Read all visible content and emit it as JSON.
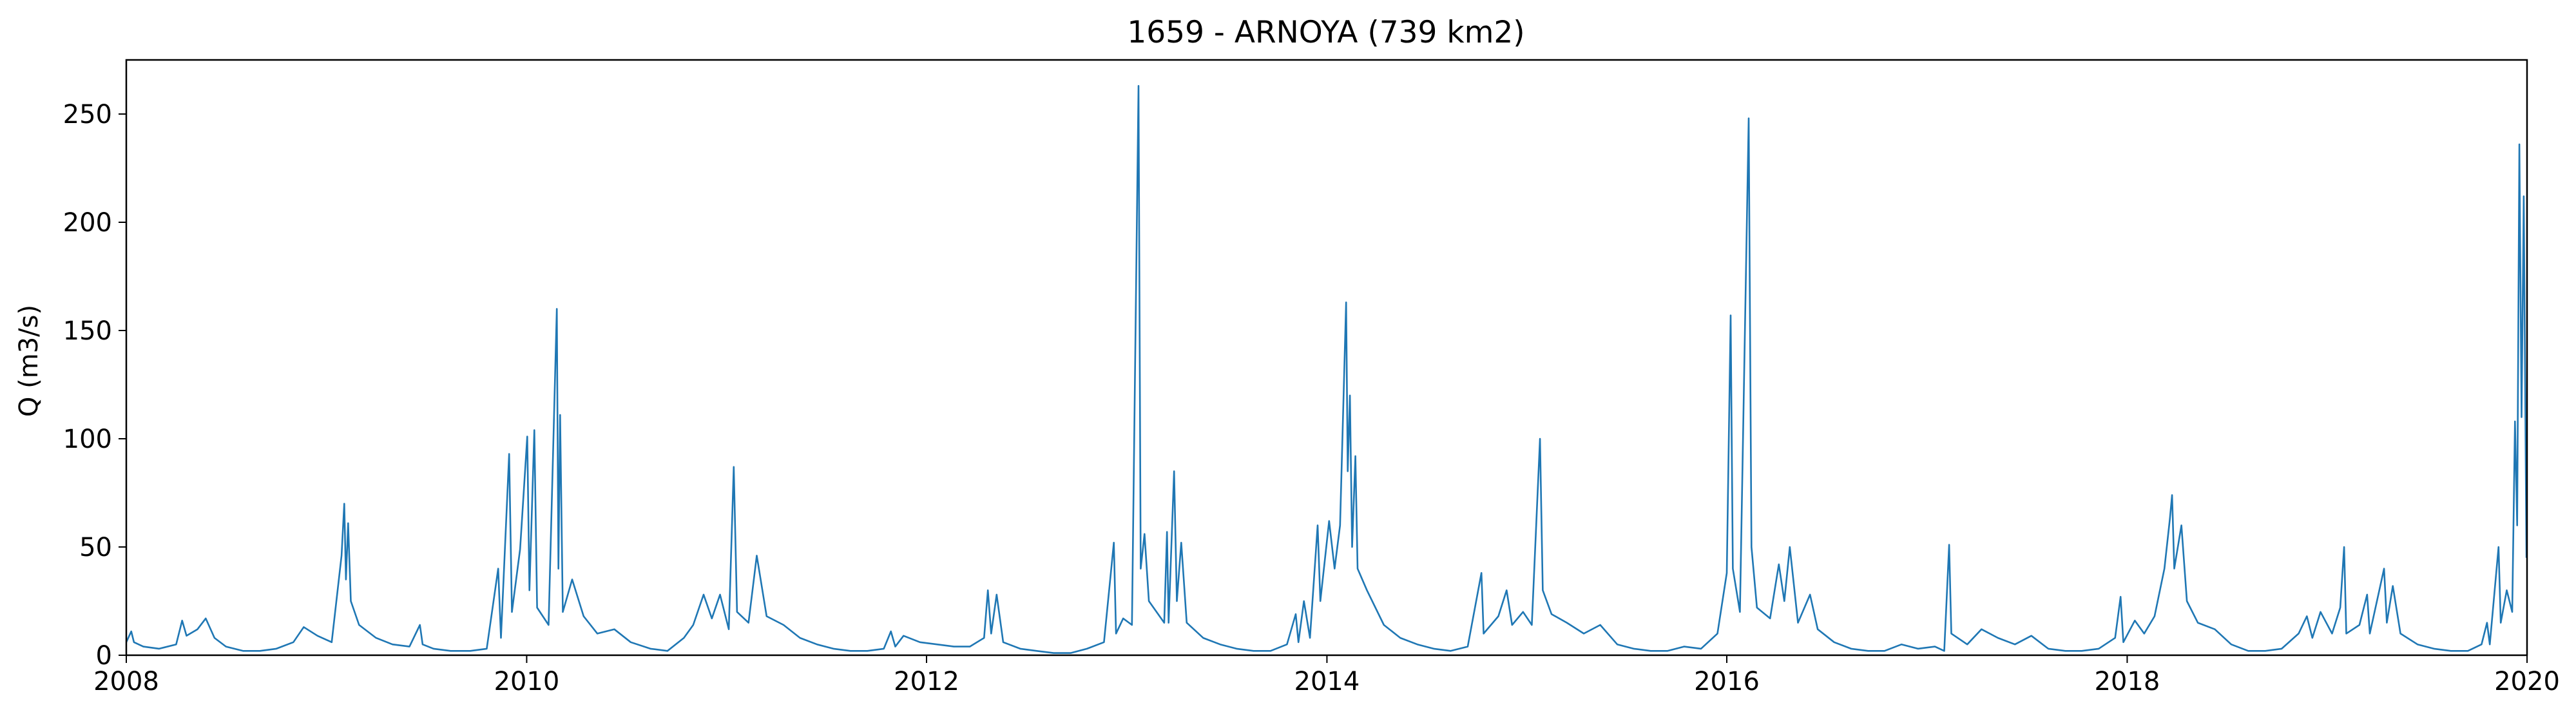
{
  "chart_data": {
    "type": "line",
    "title": "1659 - ARNOYA (739 km2)",
    "xlabel": "",
    "ylabel": "Q (m3/s)",
    "xlim": [
      "2008-01-01",
      "2020-01-01"
    ],
    "ylim": [
      0,
      275
    ],
    "x_ticks": [
      "2008",
      "2010",
      "2012",
      "2014",
      "2016",
      "2018",
      "2020"
    ],
    "y_ticks": [
      0,
      50,
      100,
      150,
      200,
      250
    ],
    "grid": false,
    "legend": "none",
    "series": [
      {
        "color": "#1f77b4",
        "points": [
          [
            "2008-01-01",
            6
          ],
          [
            "2008-01-10",
            11
          ],
          [
            "2008-01-15",
            6
          ],
          [
            "2008-02-01",
            4
          ],
          [
            "2008-03-01",
            3
          ],
          [
            "2008-04-01",
            5
          ],
          [
            "2008-04-12",
            16
          ],
          [
            "2008-04-20",
            9
          ],
          [
            "2008-05-10",
            12
          ],
          [
            "2008-05-25",
            17
          ],
          [
            "2008-06-10",
            8
          ],
          [
            "2008-07-01",
            4
          ],
          [
            "2008-08-01",
            2
          ],
          [
            "2008-09-01",
            2
          ],
          [
            "2008-10-01",
            3
          ],
          [
            "2008-11-01",
            6
          ],
          [
            "2008-11-20",
            13
          ],
          [
            "2008-12-15",
            9
          ],
          [
            "2009-01-10",
            6
          ],
          [
            "2009-01-28",
            46
          ],
          [
            "2009-02-02",
            70
          ],
          [
            "2009-02-05",
            35
          ],
          [
            "2009-02-09",
            61
          ],
          [
            "2009-02-14",
            25
          ],
          [
            "2009-03-01",
            14
          ],
          [
            "2009-04-01",
            8
          ],
          [
            "2009-05-01",
            5
          ],
          [
            "2009-06-01",
            4
          ],
          [
            "2009-06-20",
            14
          ],
          [
            "2009-06-25",
            5
          ],
          [
            "2009-07-15",
            3
          ],
          [
            "2009-08-15",
            2
          ],
          [
            "2009-09-20",
            2
          ],
          [
            "2009-10-20",
            3
          ],
          [
            "2009-11-10",
            40
          ],
          [
            "2009-11-15",
            8
          ],
          [
            "2009-11-30",
            93
          ],
          [
            "2009-12-05",
            20
          ],
          [
            "2009-12-20",
            49
          ],
          [
            "2010-01-02",
            101
          ],
          [
            "2010-01-06",
            30
          ],
          [
            "2010-01-15",
            104
          ],
          [
            "2010-01-20",
            22
          ],
          [
            "2010-02-10",
            14
          ],
          [
            "2010-02-25",
            160
          ],
          [
            "2010-02-28",
            40
          ],
          [
            "2010-03-03",
            111
          ],
          [
            "2010-03-08",
            20
          ],
          [
            "2010-03-25",
            35
          ],
          [
            "2010-04-15",
            18
          ],
          [
            "2010-05-10",
            10
          ],
          [
            "2010-06-10",
            12
          ],
          [
            "2010-07-10",
            6
          ],
          [
            "2010-08-15",
            3
          ],
          [
            "2010-09-15",
            2
          ],
          [
            "2010-10-15",
            8
          ],
          [
            "2010-11-01",
            14
          ],
          [
            "2010-11-20",
            28
          ],
          [
            "2010-12-05",
            17
          ],
          [
            "2010-12-20",
            28
          ],
          [
            "2011-01-05",
            12
          ],
          [
            "2011-01-14",
            87
          ],
          [
            "2011-01-20",
            20
          ],
          [
            "2011-02-10",
            15
          ],
          [
            "2011-02-25",
            46
          ],
          [
            "2011-03-15",
            18
          ],
          [
            "2011-04-15",
            14
          ],
          [
            "2011-05-15",
            8
          ],
          [
            "2011-06-15",
            5
          ],
          [
            "2011-07-15",
            3
          ],
          [
            "2011-08-15",
            2
          ],
          [
            "2011-09-15",
            2
          ],
          [
            "2011-10-15",
            3
          ],
          [
            "2011-10-28",
            11
          ],
          [
            "2011-11-05",
            4
          ],
          [
            "2011-11-20",
            9
          ],
          [
            "2011-12-20",
            6
          ],
          [
            "2012-01-20",
            5
          ],
          [
            "2012-02-20",
            4
          ],
          [
            "2012-03-20",
            4
          ],
          [
            "2012-04-15",
            8
          ],
          [
            "2012-04-22",
            30
          ],
          [
            "2012-04-28",
            10
          ],
          [
            "2012-05-08",
            28
          ],
          [
            "2012-05-20",
            6
          ],
          [
            "2012-06-20",
            3
          ],
          [
            "2012-07-20",
            2
          ],
          [
            "2012-08-20",
            1
          ],
          [
            "2012-09-20",
            1
          ],
          [
            "2012-10-20",
            3
          ],
          [
            "2012-11-20",
            6
          ],
          [
            "2012-12-08",
            52
          ],
          [
            "2012-12-12",
            10
          ],
          [
            "2012-12-25",
            17
          ],
          [
            "2013-01-10",
            14
          ],
          [
            "2013-01-22",
            263
          ],
          [
            "2013-01-26",
            40
          ],
          [
            "2013-02-02",
            56
          ],
          [
            "2013-02-10",
            25
          ],
          [
            "2013-03-10",
            15
          ],
          [
            "2013-03-15",
            57
          ],
          [
            "2013-03-18",
            15
          ],
          [
            "2013-03-28",
            85
          ],
          [
            "2013-04-02",
            25
          ],
          [
            "2013-04-10",
            52
          ],
          [
            "2013-04-20",
            15
          ],
          [
            "2013-05-20",
            8
          ],
          [
            "2013-06-20",
            5
          ],
          [
            "2013-07-20",
            3
          ],
          [
            "2013-08-20",
            2
          ],
          [
            "2013-09-20",
            2
          ],
          [
            "2013-10-20",
            5
          ],
          [
            "2013-11-05",
            19
          ],
          [
            "2013-11-10",
            6
          ],
          [
            "2013-11-20",
            25
          ],
          [
            "2013-12-01",
            8
          ],
          [
            "2013-12-15",
            60
          ],
          [
            "2013-12-20",
            25
          ],
          [
            "2014-01-05",
            62
          ],
          [
            "2014-01-15",
            40
          ],
          [
            "2014-01-25",
            60
          ],
          [
            "2014-02-05",
            163
          ],
          [
            "2014-02-08",
            85
          ],
          [
            "2014-02-12",
            120
          ],
          [
            "2014-02-16",
            50
          ],
          [
            "2014-02-22",
            92
          ],
          [
            "2014-02-26",
            40
          ],
          [
            "2014-03-15",
            30
          ],
          [
            "2014-04-15",
            14
          ],
          [
            "2014-05-15",
            8
          ],
          [
            "2014-06-15",
            5
          ],
          [
            "2014-07-15",
            3
          ],
          [
            "2014-08-15",
            2
          ],
          [
            "2014-09-15",
            4
          ],
          [
            "2014-10-10",
            38
          ],
          [
            "2014-10-14",
            10
          ],
          [
            "2014-11-10",
            18
          ],
          [
            "2014-11-25",
            30
          ],
          [
            "2014-12-05",
            14
          ],
          [
            "2014-12-25",
            20
          ],
          [
            "2015-01-10",
            14
          ],
          [
            "2015-01-25",
            100
          ],
          [
            "2015-01-30",
            30
          ],
          [
            "2015-02-15",
            19
          ],
          [
            "2015-03-15",
            15
          ],
          [
            "2015-04-15",
            10
          ],
          [
            "2015-05-15",
            14
          ],
          [
            "2015-06-15",
            5
          ],
          [
            "2015-07-15",
            3
          ],
          [
            "2015-08-15",
            2
          ],
          [
            "2015-09-15",
            2
          ],
          [
            "2015-10-15",
            4
          ],
          [
            "2015-11-15",
            3
          ],
          [
            "2015-12-15",
            10
          ],
          [
            "2016-01-01",
            38
          ],
          [
            "2016-01-08",
            157
          ],
          [
            "2016-01-12",
            40
          ],
          [
            "2016-01-25",
            20
          ],
          [
            "2016-02-10",
            248
          ],
          [
            "2016-02-15",
            50
          ],
          [
            "2016-02-25",
            22
          ],
          [
            "2016-03-20",
            17
          ],
          [
            "2016-04-05",
            42
          ],
          [
            "2016-04-15",
            25
          ],
          [
            "2016-04-25",
            50
          ],
          [
            "2016-05-10",
            15
          ],
          [
            "2016-06-01",
            28
          ],
          [
            "2016-06-15",
            12
          ],
          [
            "2016-07-15",
            6
          ],
          [
            "2016-08-15",
            3
          ],
          [
            "2016-09-15",
            2
          ],
          [
            "2016-10-15",
            2
          ],
          [
            "2016-11-15",
            5
          ],
          [
            "2016-12-15",
            3
          ],
          [
            "2017-01-15",
            4
          ],
          [
            "2017-02-01",
            2
          ],
          [
            "2017-02-10",
            51
          ],
          [
            "2017-02-14",
            10
          ],
          [
            "2017-03-15",
            5
          ],
          [
            "2017-04-10",
            12
          ],
          [
            "2017-05-10",
            8
          ],
          [
            "2017-06-10",
            5
          ],
          [
            "2017-07-10",
            9
          ],
          [
            "2017-08-10",
            3
          ],
          [
            "2017-09-10",
            2
          ],
          [
            "2017-10-10",
            2
          ],
          [
            "2017-11-10",
            3
          ],
          [
            "2017-12-10",
            8
          ],
          [
            "2017-12-20",
            27
          ],
          [
            "2017-12-25",
            6
          ],
          [
            "2018-01-15",
            16
          ],
          [
            "2018-02-01",
            10
          ],
          [
            "2018-02-20",
            18
          ],
          [
            "2018-03-10",
            40
          ],
          [
            "2018-03-20",
            63
          ],
          [
            "2018-03-24",
            74
          ],
          [
            "2018-03-28",
            40
          ],
          [
            "2018-04-10",
            60
          ],
          [
            "2018-04-20",
            25
          ],
          [
            "2018-05-10",
            15
          ],
          [
            "2018-06-10",
            12
          ],
          [
            "2018-07-10",
            5
          ],
          [
            "2018-08-10",
            2
          ],
          [
            "2018-09-10",
            2
          ],
          [
            "2018-10-10",
            3
          ],
          [
            "2018-11-10",
            10
          ],
          [
            "2018-11-25",
            18
          ],
          [
            "2018-12-05",
            8
          ],
          [
            "2018-12-20",
            20
          ],
          [
            "2019-01-10",
            10
          ],
          [
            "2019-01-25",
            22
          ],
          [
            "2019-02-01",
            50
          ],
          [
            "2019-02-05",
            10
          ],
          [
            "2019-03-01",
            14
          ],
          [
            "2019-03-15",
            28
          ],
          [
            "2019-03-20",
            10
          ],
          [
            "2019-04-15",
            40
          ],
          [
            "2019-04-20",
            15
          ],
          [
            "2019-05-01",
            32
          ],
          [
            "2019-05-15",
            10
          ],
          [
            "2019-06-15",
            5
          ],
          [
            "2019-07-15",
            3
          ],
          [
            "2019-08-15",
            2
          ],
          [
            "2019-09-15",
            2
          ],
          [
            "2019-10-10",
            5
          ],
          [
            "2019-10-20",
            15
          ],
          [
            "2019-10-25",
            5
          ],
          [
            "2019-11-10",
            50
          ],
          [
            "2019-11-14",
            15
          ],
          [
            "2019-11-25",
            30
          ],
          [
            "2019-12-05",
            20
          ],
          [
            "2019-12-10",
            108
          ],
          [
            "2019-12-14",
            60
          ],
          [
            "2019-12-18",
            236
          ],
          [
            "2019-12-22",
            110
          ],
          [
            "2019-12-26",
            212
          ],
          [
            "2019-12-31",
            45
          ]
        ]
      }
    ]
  }
}
